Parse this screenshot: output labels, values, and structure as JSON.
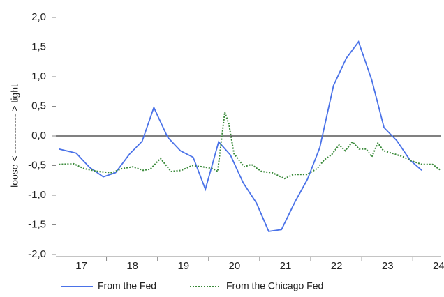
{
  "chart_data": {
    "type": "line",
    "ylabel": "loose < ------------ > tight",
    "ylim": [
      -2,
      2
    ],
    "yticks": [
      {
        "value": 2,
        "label": "2,0"
      },
      {
        "value": 1.5,
        "label": "1,5"
      },
      {
        "value": 1,
        "label": "1,0"
      },
      {
        "value": 0.5,
        "label": "0,5"
      },
      {
        "value": 0,
        "label": "0,0"
      },
      {
        "value": -0.5,
        "label": "-0,5"
      },
      {
        "value": -1,
        "label": "-1,0"
      },
      {
        "value": -1.5,
        "label": "-1,5"
      },
      {
        "value": -2,
        "label": "-2,0"
      }
    ],
    "xlim": [
      16.5,
      24.05
    ],
    "xticks": [
      17,
      18,
      19,
      20,
      21,
      22,
      23,
      24
    ],
    "legend": "bottom",
    "series": [
      {
        "name": "From the Fed",
        "color": "#4a72e8",
        "x": [
          16.56,
          16.9,
          17.16,
          17.43,
          17.67,
          17.94,
          18.19,
          18.42,
          18.69,
          18.94,
          19.19,
          19.43,
          19.69,
          19.92,
          20.17,
          20.43,
          20.67,
          20.92,
          21.18,
          21.43,
          21.67,
          21.94,
          22.19,
          22.43,
          22.69,
          22.93,
          23.18,
          23.44,
          23.67
        ],
        "values": [
          -0.22,
          -0.29,
          -0.53,
          -0.69,
          -0.62,
          -0.31,
          -0.09,
          0.48,
          -0.02,
          -0.25,
          -0.36,
          -0.9,
          -0.1,
          -0.32,
          -0.79,
          -1.13,
          -1.61,
          -1.58,
          -1.12,
          -0.73,
          -0.2,
          0.85,
          1.31,
          1.59,
          0.94,
          0.14,
          -0.08,
          -0.41,
          -0.58
        ]
      },
      {
        "name": "From the Chicago Fed",
        "color": "#3a8a3a",
        "x": [
          16.56,
          16.85,
          17.05,
          17.33,
          17.6,
          17.8,
          18.01,
          18.21,
          18.35,
          18.55,
          18.76,
          18.96,
          19.17,
          19.37,
          19.58,
          19.67,
          19.81,
          19.89,
          19.99,
          20.19,
          20.33,
          20.53,
          20.74,
          20.98,
          21.15,
          21.42,
          21.62,
          21.76,
          21.9,
          22.05,
          22.17,
          22.31,
          22.44,
          22.58,
          22.69,
          22.81,
          22.92,
          23.12,
          23.3,
          23.47,
          23.67,
          23.88,
          24.04
        ],
        "values": [
          -0.48,
          -0.47,
          -0.55,
          -0.6,
          -0.62,
          -0.55,
          -0.52,
          -0.58,
          -0.56,
          -0.38,
          -0.6,
          -0.58,
          -0.5,
          -0.52,
          -0.55,
          -0.6,
          0.4,
          0.2,
          -0.3,
          -0.52,
          -0.48,
          -0.6,
          -0.62,
          -0.72,
          -0.65,
          -0.65,
          -0.55,
          -0.4,
          -0.32,
          -0.15,
          -0.25,
          -0.1,
          -0.22,
          -0.22,
          -0.35,
          -0.12,
          -0.25,
          -0.3,
          -0.35,
          -0.42,
          -0.48,
          -0.48,
          -0.58
        ]
      }
    ]
  }
}
